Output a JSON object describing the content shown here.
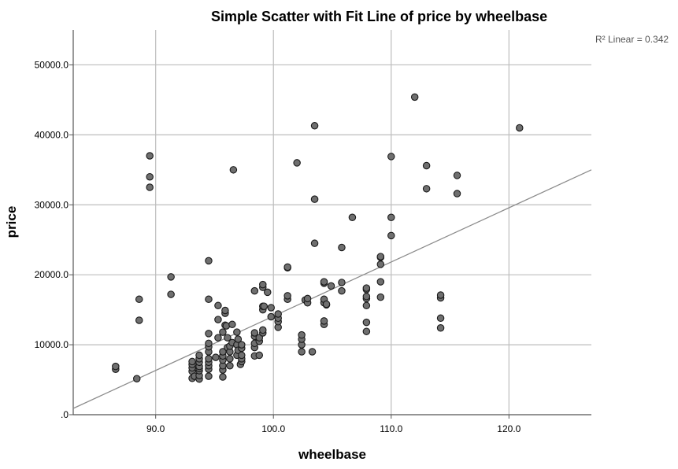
{
  "chart_data": {
    "type": "scatter",
    "title": "Simple Scatter with Fit Line of price by wheelbase",
    "xlabel": "wheelbase",
    "ylabel": "price",
    "xlim": [
      83,
      127
    ],
    "ylim": [
      0,
      55000
    ],
    "x_ticks": [
      90,
      100,
      110,
      120
    ],
    "x_tick_labels": [
      "90.0",
      "100.0",
      "110.0",
      "120.0"
    ],
    "y_ticks": [
      0,
      10000,
      20000,
      30000,
      40000,
      50000
    ],
    "y_tick_labels": [
      ".0",
      "10000.0",
      "20000.0",
      "30000.0",
      "40000.0",
      "50000.0"
    ],
    "grid": true,
    "fit_line": {
      "label": "R² Linear = 0.342",
      "points": [
        [
          83,
          900
        ],
        [
          127,
          35000
        ]
      ]
    },
    "colors": {
      "marker_fill": "#6f6f6f",
      "marker_edge": "#1a1a1a",
      "grid": "#bdbdbd",
      "fit_line": "#8c8c8c"
    },
    "points": [
      [
        86.6,
        6500
      ],
      [
        86.6,
        6900
      ],
      [
        88.4,
        5150
      ],
      [
        88.6,
        13500
      ],
      [
        88.6,
        16500
      ],
      [
        89.5,
        32500
      ],
      [
        89.5,
        34000
      ],
      [
        89.5,
        37000
      ],
      [
        91.3,
        17200
      ],
      [
        91.3,
        19700
      ],
      [
        93.1,
        5200
      ],
      [
        93.1,
        6200
      ],
      [
        93.1,
        6700
      ],
      [
        93.1,
        7200
      ],
      [
        93.1,
        7600
      ],
      [
        93.3,
        5500
      ],
      [
        93.7,
        5100
      ],
      [
        93.7,
        5600
      ],
      [
        93.7,
        6300
      ],
      [
        93.7,
        6600
      ],
      [
        93.7,
        6900
      ],
      [
        93.7,
        7500
      ],
      [
        93.7,
        8000
      ],
      [
        93.7,
        8500
      ],
      [
        94.5,
        5500
      ],
      [
        94.5,
        6500
      ],
      [
        94.5,
        7000
      ],
      [
        94.5,
        7500
      ],
      [
        94.5,
        8000
      ],
      [
        94.5,
        9000
      ],
      [
        94.5,
        9700
      ],
      [
        94.5,
        10200
      ],
      [
        94.5,
        11600
      ],
      [
        94.5,
        16500
      ],
      [
        94.5,
        22000
      ],
      [
        95.1,
        8200
      ],
      [
        95.3,
        11000
      ],
      [
        95.3,
        13600
      ],
      [
        95.3,
        15600
      ],
      [
        95.7,
        5400
      ],
      [
        95.7,
        6400
      ],
      [
        95.7,
        7000
      ],
      [
        95.7,
        7800
      ],
      [
        95.7,
        8400
      ],
      [
        95.7,
        9000
      ],
      [
        95.7,
        11800
      ],
      [
        95.9,
        12800
      ],
      [
        95.9,
        14500
      ],
      [
        95.9,
        14900
      ],
      [
        96.0,
        12700
      ],
      [
        96.1,
        9600
      ],
      [
        96.1,
        11000
      ],
      [
        96.3,
        7000
      ],
      [
        96.3,
        8000
      ],
      [
        96.3,
        9000
      ],
      [
        96.3,
        9800
      ],
      [
        96.5,
        10300
      ],
      [
        96.5,
        12900
      ],
      [
        96.6,
        35000
      ],
      [
        96.9,
        8500
      ],
      [
        96.9,
        10000
      ],
      [
        96.9,
        11800
      ],
      [
        97.0,
        9200
      ],
      [
        97.0,
        10800
      ],
      [
        97.2,
        7200
      ],
      [
        97.3,
        7600
      ],
      [
        97.3,
        8000
      ],
      [
        97.3,
        8500
      ],
      [
        97.3,
        9500
      ],
      [
        97.3,
        10000
      ],
      [
        98.4,
        8400
      ],
      [
        98.4,
        9600
      ],
      [
        98.4,
        10200
      ],
      [
        98.4,
        11200
      ],
      [
        98.4,
        11700
      ],
      [
        98.4,
        17700
      ],
      [
        98.8,
        8500
      ],
      [
        98.8,
        10500
      ],
      [
        98.8,
        11000
      ],
      [
        99.1,
        11700
      ],
      [
        99.1,
        12100
      ],
      [
        99.1,
        15000
      ],
      [
        99.1,
        15500
      ],
      [
        99.1,
        18200
      ],
      [
        99.1,
        18600
      ],
      [
        99.2,
        15500
      ],
      [
        99.5,
        17500
      ],
      [
        99.8,
        14000
      ],
      [
        99.8,
        15300
      ],
      [
        100.4,
        12500
      ],
      [
        100.4,
        13300
      ],
      [
        100.4,
        13800
      ],
      [
        100.4,
        14400
      ],
      [
        101.2,
        16500
      ],
      [
        101.2,
        17000
      ],
      [
        101.2,
        21000
      ],
      [
        101.2,
        21100
      ],
      [
        102.0,
        36000
      ],
      [
        102.4,
        9000
      ],
      [
        102.4,
        10000
      ],
      [
        102.4,
        10800
      ],
      [
        102.4,
        11400
      ],
      [
        102.7,
        16400
      ],
      [
        102.9,
        16000
      ],
      [
        102.9,
        16600
      ],
      [
        103.3,
        9000
      ],
      [
        103.5,
        24500
      ],
      [
        103.5,
        30800
      ],
      [
        103.5,
        41300
      ],
      [
        104.3,
        12900
      ],
      [
        104.3,
        13400
      ],
      [
        104.3,
        16000
      ],
      [
        104.3,
        16500
      ],
      [
        104.5,
        15700
      ],
      [
        104.5,
        15800
      ],
      [
        104.9,
        18400
      ],
      [
        105.8,
        17700
      ],
      [
        105.8,
        18900
      ],
      [
        105.8,
        23900
      ],
      [
        106.7,
        28200
      ],
      [
        104.3,
        18800
      ],
      [
        104.3,
        19000
      ],
      [
        107.9,
        11900
      ],
      [
        107.9,
        13200
      ],
      [
        107.9,
        15600
      ],
      [
        107.9,
        16600
      ],
      [
        107.9,
        16900
      ],
      [
        107.9,
        17900
      ],
      [
        107.9,
        18100
      ],
      [
        109.1,
        16800
      ],
      [
        109.1,
        19000
      ],
      [
        109.1,
        21500
      ],
      [
        109.1,
        22500
      ],
      [
        109.1,
        22600
      ],
      [
        110.0,
        25600
      ],
      [
        110.0,
        28200
      ],
      [
        110.0,
        36900
      ],
      [
        112.0,
        45400
      ],
      [
        113.0,
        32300
      ],
      [
        113.0,
        35600
      ],
      [
        114.2,
        12400
      ],
      [
        114.2,
        13800
      ],
      [
        114.2,
        16700
      ],
      [
        114.2,
        17100
      ],
      [
        115.6,
        31600
      ],
      [
        115.6,
        34200
      ],
      [
        120.9,
        41000
      ]
    ]
  }
}
